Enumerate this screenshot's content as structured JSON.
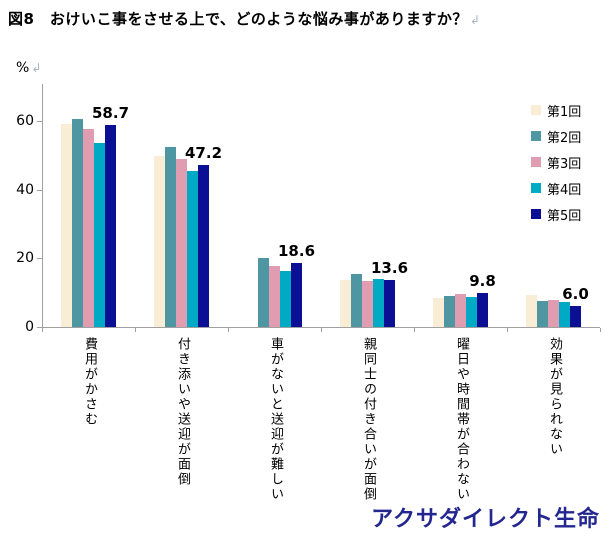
{
  "title": "図8　おけいこ事をさせる上で、どのような悩み事がありますか？",
  "paragraph_mark": "↲",
  "y_axis": {
    "unit_label": "%",
    "ticks": [
      60,
      40,
      20,
      0
    ]
  },
  "legend": {
    "items": [
      {
        "label": "第1回",
        "color": "#faedd5"
      },
      {
        "label": "第2回",
        "color": "#4e97a2"
      },
      {
        "label": "第3回",
        "color": "#e09db1"
      },
      {
        "label": "第4回",
        "color": "#00aac4"
      },
      {
        "label": "第5回",
        "color": "#0b0f93"
      }
    ]
  },
  "chart_data": {
    "type": "bar",
    "title": "図8　おけいこ事をさせる上で、どのような悩み事がありますか？",
    "ylabel": "%",
    "ylim": [
      0,
      70
    ],
    "grid": false,
    "legend_position": "right",
    "categories": [
      "費用がかさむ",
      "付き添いや送迎が面倒",
      "車がないと送迎が難しい",
      "親同士の付き合いが面倒",
      "曜日や時間帯が合わない",
      "効果が見られない"
    ],
    "series": [
      {
        "name": "第1回",
        "color": "#faedd5",
        "values": [
          59.2,
          49.9,
          null,
          13.8,
          8.4,
          9.2
        ]
      },
      {
        "name": "第2回",
        "color": "#4e97a2",
        "values": [
          60.7,
          52.4,
          20.1,
          15.3,
          9.0,
          7.7
        ]
      },
      {
        "name": "第3回",
        "color": "#e09db1",
        "values": [
          57.7,
          49.0,
          17.7,
          13.4,
          9.6,
          8.0
        ]
      },
      {
        "name": "第4回",
        "color": "#00aac4",
        "values": [
          53.6,
          45.3,
          16.3,
          14.1,
          8.7,
          7.2
        ]
      },
      {
        "name": "第5回",
        "color": "#0b0f93",
        "values": [
          58.7,
          47.2,
          18.6,
          13.6,
          9.8,
          6.0
        ]
      }
    ],
    "data_labels": {
      "series": "第5回",
      "texts": [
        "58.7",
        "47.2",
        "18.6",
        "13.6",
        "9.8",
        "6.0"
      ]
    }
  },
  "footer": {
    "logo_text": "アクサダイレクト生命"
  }
}
